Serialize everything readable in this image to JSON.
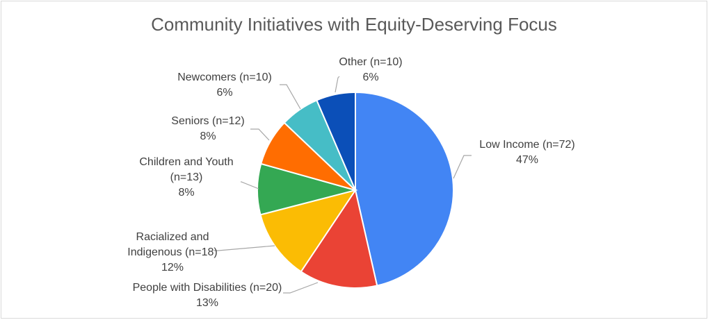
{
  "chart_data": {
    "type": "pie",
    "title": "Community Initiatives with Equity-Deserving Focus",
    "slices": [
      {
        "label_lines": [
          "Low Income (n=72)"
        ],
        "pct_label": "47%",
        "value": 72,
        "color": "#4285f4"
      },
      {
        "label_lines": [
          "People with Disabilities (n=20)"
        ],
        "pct_label": "13%",
        "value": 20,
        "color": "#ea4335"
      },
      {
        "label_lines": [
          "Racialized and",
          "Indigenous (n=18)"
        ],
        "pct_label": "12%",
        "value": 18,
        "color": "#fbbc04"
      },
      {
        "label_lines": [
          "Children and Youth",
          "(n=13)"
        ],
        "pct_label": "8%",
        "value": 13,
        "color": "#34a853"
      },
      {
        "label_lines": [
          "Seniors (n=12)"
        ],
        "pct_label": "8%",
        "value": 12,
        "color": "#ff6d01"
      },
      {
        "label_lines": [
          "Newcomers (n=10)"
        ],
        "pct_label": "6%",
        "value": 10,
        "color": "#46bdc6"
      },
      {
        "label_lines": [
          "Other (n=10)"
        ],
        "pct_label": "6%",
        "value": 10,
        "color": "#0b4fb8"
      }
    ],
    "legend": "none",
    "data_labels": "outside with leader lines"
  }
}
